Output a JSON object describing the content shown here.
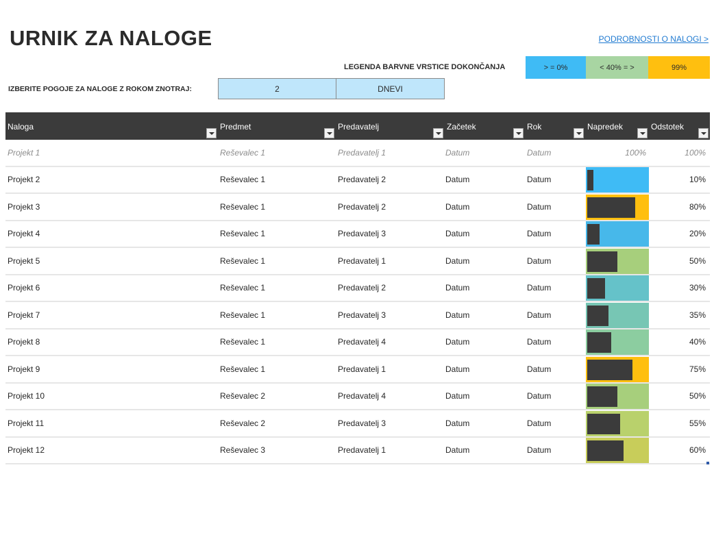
{
  "title": "URNIK ZA NALOGE",
  "details_link": "PODROBNOSTI O NALOGI >",
  "legend": {
    "label": "LEGENDA BARVNE VRSTICE DOKONČANJA",
    "items": [
      {
        "label": "> = 0%",
        "color": "#3fbbf5"
      },
      {
        "label": "< 40% = >",
        "color": "#a8d5a2"
      },
      {
        "label": "99%",
        "color": "#ffbf0f"
      }
    ]
  },
  "filter": {
    "label": "IZBERITE POGOJE ZA NALOGE Z ROKOM ZNOTRAJ:",
    "value": "2",
    "unit": "DNEVI"
  },
  "columns": [
    "Naloga",
    "Predmet",
    "Predavatelj",
    "Začetek",
    "Rok",
    "Napredek",
    "Odstotek"
  ],
  "sample_row": {
    "task": "Projekt 1",
    "subject": "Reševalec 1",
    "assignee": "Predavatelj 1",
    "start": "Datum",
    "due": "Datum",
    "progress_text": "100%",
    "percent": "100%"
  },
  "rows": [
    {
      "task": "Projekt 2",
      "subject": "Reševalec 1",
      "assignee": "Predavatelj 2",
      "start": "Datum",
      "due": "Datum",
      "percent": "10%",
      "progress": 0.1,
      "bar_color": "#3fbbf5"
    },
    {
      "task": "Projekt 3",
      "subject": "Reševalec 1",
      "assignee": "Predavatelj 2",
      "start": "Datum",
      "due": "Datum",
      "percent": "80%",
      "progress": 0.8,
      "bar_color": "#ffbf0f"
    },
    {
      "task": "Projekt 4",
      "subject": "Reševalec 1",
      "assignee": "Predavatelj 3",
      "start": "Datum",
      "due": "Datum",
      "percent": "20%",
      "progress": 0.2,
      "bar_color": "#47b8ea"
    },
    {
      "task": "Projekt 5",
      "subject": "Reševalec 1",
      "assignee": "Predavatelj 1",
      "start": "Datum",
      "due": "Datum",
      "percent": "50%",
      "progress": 0.5,
      "bar_color": "#a7cf7c"
    },
    {
      "task": "Projekt 6",
      "subject": "Reševalec 1",
      "assignee": "Predavatelj 2",
      "start": "Datum",
      "due": "Datum",
      "percent": "30%",
      "progress": 0.3,
      "bar_color": "#65c2c9"
    },
    {
      "task": "Projekt 7",
      "subject": "Reševalec 1",
      "assignee": "Predavatelj 3",
      "start": "Datum",
      "due": "Datum",
      "percent": "35%",
      "progress": 0.35,
      "bar_color": "#77c6b4"
    },
    {
      "task": "Projekt 8",
      "subject": "Reševalec 1",
      "assignee": "Predavatelj 4",
      "start": "Datum",
      "due": "Datum",
      "percent": "40%",
      "progress": 0.4,
      "bar_color": "#8ccda0"
    },
    {
      "task": "Projekt 9",
      "subject": "Reševalec 1",
      "assignee": "Predavatelj 1",
      "start": "Datum",
      "due": "Datum",
      "percent": "75%",
      "progress": 0.75,
      "bar_color": "#ffbf0f"
    },
    {
      "task": "Projekt 10",
      "subject": "Reševalec 2",
      "assignee": "Predavatelj 4",
      "start": "Datum",
      "due": "Datum",
      "percent": "50%",
      "progress": 0.5,
      "bar_color": "#a7cf7c"
    },
    {
      "task": "Projekt 11",
      "subject": "Reševalec 2",
      "assignee": "Predavatelj 3",
      "start": "Datum",
      "due": "Datum",
      "percent": "55%",
      "progress": 0.55,
      "bar_color": "#b9d16c"
    },
    {
      "task": "Projekt 12",
      "subject": "Reševalec 3",
      "assignee": "Predavatelj 1",
      "start": "Datum",
      "due": "Datum",
      "percent": "60%",
      "progress": 0.6,
      "bar_color": "#c8cd5a"
    }
  ]
}
